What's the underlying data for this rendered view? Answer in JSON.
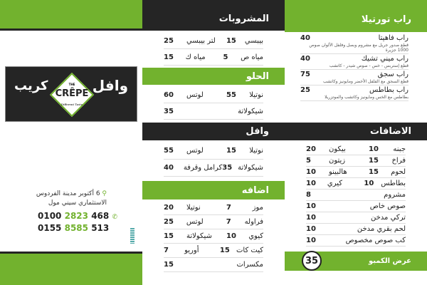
{
  "colors": {
    "green": "#72b22e",
    "dark": "#252525"
  },
  "left": {
    "logo": {
      "left_word": "كريب",
      "right_word": "وافل",
      "brand_top": "THE",
      "brand": "CRÊPE",
      "tagline": "Different Taste"
    },
    "address_icon": "location-pin-icon",
    "address_line1": "6 أكتوبر مدينة الفردوس",
    "address_line2": "الاستثماري سيني مول",
    "phone_icon": "phone-icon",
    "phone1": {
      "a": "0100",
      "b": "2823",
      "c": "468"
    },
    "phone2": {
      "a": "0155",
      "b": "8585",
      "c": "513"
    }
  },
  "drinks": {
    "title": "المشروبات",
    "rows": [
      {
        "n1": "بيبسي",
        "p1": "15",
        "n2": "لتر بيبسي",
        "p2": "25"
      },
      {
        "n1": "مياه ص",
        "p1": "5",
        "n2": "مياه ك",
        "p2": "15"
      }
    ]
  },
  "sweet": {
    "title": "الحلو",
    "rows": [
      {
        "n1": "نوتيلا",
        "p1": "55",
        "n2": "لوتس",
        "p2": "60"
      },
      {
        "n1": "شيكولاتة",
        "p1": "",
        "n2": "",
        "p2": "35"
      }
    ]
  },
  "waffle": {
    "title": "وافل",
    "rows": [
      {
        "n1": "نوتيلا",
        "p1": "15",
        "n2": "لوتس",
        "p2": "55"
      },
      {
        "n1": "شيكولاتة",
        "p1": "35",
        "n2": "كرامل وقرفة",
        "p2": "40"
      }
    ]
  },
  "extra": {
    "title": "اضافه",
    "rows": [
      {
        "n1": "موز",
        "p1": "7",
        "n2": "نوتيلا",
        "p2": "20"
      },
      {
        "n1": "فراوله",
        "p1": "7",
        "n2": "لوتس",
        "p2": "25"
      },
      {
        "n1": "كيوي",
        "p1": "10",
        "n2": "شيكولاتة",
        "p2": "15"
      },
      {
        "n1": "كيت كات",
        "p1": "15",
        "n2": "أوريو",
        "p2": "7"
      },
      {
        "n1": "مكسرات",
        "p1": "",
        "n2": "",
        "p2": "15"
      }
    ]
  },
  "wrap": {
    "title": "راب تورتيلا",
    "items": [
      {
        "name": "راب فاهيتا",
        "price": "40",
        "desc": "قطع صدور جريل مع مشروم وبصل وفلفل الألوان صوص 1000 جزيرة"
      },
      {
        "name": "راب ميني تشيك",
        "price": "40",
        "desc": "قطع إستربس - خس - صوص شيدر - كاتشب"
      },
      {
        "name": "راب سجق",
        "price": "75",
        "desc": "قطع السجق مع الفلفل الأخضر ومايونيز وكاتشب"
      },
      {
        "name": "راب بطاطس",
        "price": "25",
        "desc": "بطاطس مع الخس ومايونيز وكاتشب والموتزريلا"
      }
    ]
  },
  "additions": {
    "title": "الاضافات",
    "rows": [
      {
        "n1": "جبنه",
        "p1": "10",
        "n2": "بيكون",
        "p2": "20"
      },
      {
        "n1": "فراخ",
        "p1": "15",
        "n2": "زيتون",
        "p2": "5"
      },
      {
        "n1": "لحوم",
        "p1": "15",
        "n2": "هالبينو",
        "p2": "10"
      },
      {
        "n1": "بطاطس",
        "p1": "10",
        "n2": "كيري",
        "p2": "10"
      },
      {
        "n1": "مشروم",
        "p1": "",
        "n2": "",
        "p2": "8"
      },
      {
        "n1": "صوص خاص",
        "p1": "",
        "n2": "",
        "p2": "10"
      },
      {
        "n1": "تركي مدخن",
        "p1": "",
        "n2": "",
        "p2": "10"
      },
      {
        "n1": "لحم بقري مدخن",
        "p1": "",
        "n2": "",
        "p2": "10"
      },
      {
        "n1": "كب صوص مخصوص",
        "p1": "",
        "n2": "",
        "p2": "10"
      }
    ]
  },
  "combo": {
    "label": "عرض الكمبو",
    "price": "35"
  }
}
